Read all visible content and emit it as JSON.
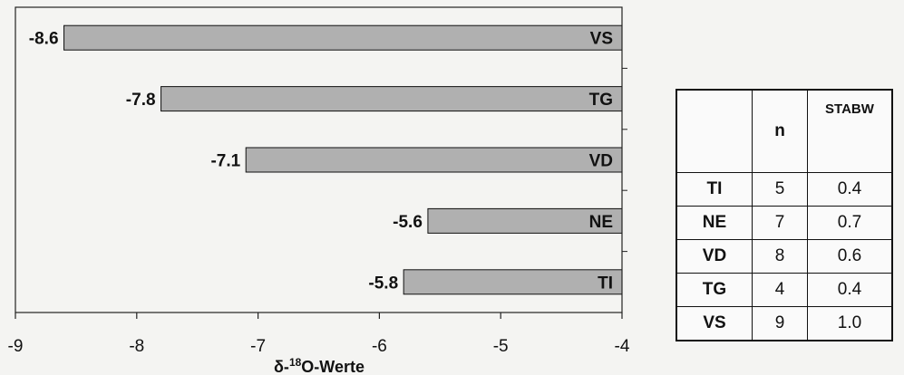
{
  "chart_data": {
    "type": "bar",
    "orientation": "horizontal",
    "categories": [
      "VS",
      "TG",
      "VD",
      "NE",
      "TI"
    ],
    "values": [
      -8.6,
      -7.8,
      -7.1,
      -5.6,
      -5.8
    ],
    "value_labels": [
      "-8.6",
      "-7.8",
      "-7.1",
      "-5.6",
      "-5.8"
    ],
    "xlabel_prefix": "δ-",
    "xlabel_sup": "18",
    "xlabel_suffix": "O-Werte",
    "xlim": [
      -9,
      -4
    ],
    "x_ticks": [
      -9,
      -8,
      -7,
      -6,
      -5,
      -4
    ],
    "bar_color": "#b0b0b0",
    "grid": false
  },
  "table": {
    "headers": [
      "",
      "n",
      "STABW"
    ],
    "rows": [
      {
        "site": "TI",
        "n": "5",
        "sd": "0.4"
      },
      {
        "site": "NE",
        "n": "7",
        "sd": "0.7"
      },
      {
        "site": "VD",
        "n": "8",
        "sd": "0.6"
      },
      {
        "site": "TG",
        "n": "4",
        "sd": "0.4"
      },
      {
        "site": "VS",
        "n": "9",
        "sd": "1.0"
      }
    ]
  }
}
